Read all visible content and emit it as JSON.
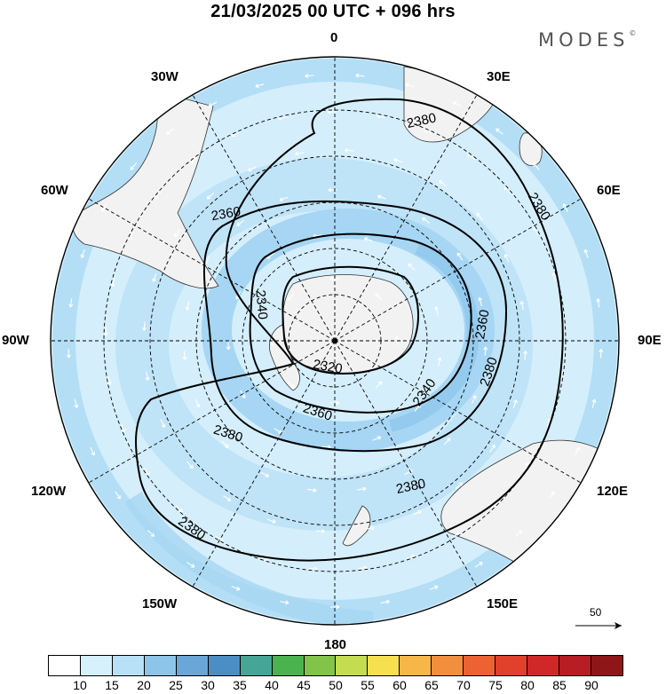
{
  "header": {
    "title": "21/03/2025  00 UTC  + 096 hrs"
  },
  "brand": {
    "name": "MODES",
    "mark": "©"
  },
  "longitude_labels": {
    "n": "0",
    "nne": "30E",
    "ene": "60E",
    "e": "90E",
    "ese": "120E",
    "sse": "150E",
    "s": "180",
    "ssw": "150W",
    "wsw": "120W",
    "w": "90W",
    "wnw": "60W",
    "nnw": "30W"
  },
  "contours": [
    {
      "label": "2380",
      "ring": "outer"
    },
    {
      "label": "2360",
      "ring": "middle"
    },
    {
      "label": "2340",
      "ring": "inner"
    },
    {
      "label": "2320",
      "ring": "center"
    }
  ],
  "contour_labels": [
    "2380",
    "2380",
    "2380",
    "2380",
    "2380",
    "2380",
    "2360",
    "2360",
    "2360",
    "2340",
    "2340",
    "2320"
  ],
  "wind_scale": {
    "label": "50"
  },
  "legend": {
    "colors": [
      "#ffffff",
      "#d6f0fc",
      "#b8e1f6",
      "#8cc4ea",
      "#6aa6d8",
      "#4a8ec6",
      "#45a596",
      "#4bb34e",
      "#82c34a",
      "#c4dc52",
      "#f6e050",
      "#f6b648",
      "#f28f3e",
      "#ec6232",
      "#e0402c",
      "#d02828",
      "#b81c24",
      "#8e1618"
    ],
    "ticks": [
      "10",
      "15",
      "20",
      "25",
      "30",
      "35",
      "40",
      "45",
      "50",
      "55",
      "60",
      "65",
      "70",
      "75",
      "80",
      "85",
      "90"
    ]
  },
  "colors": {
    "land": "#f2f2f2",
    "ocean_base": "#d4eefb",
    "jet_core": "#9fd1f1",
    "contour": "#000000",
    "arrow": "#ffffff"
  }
}
